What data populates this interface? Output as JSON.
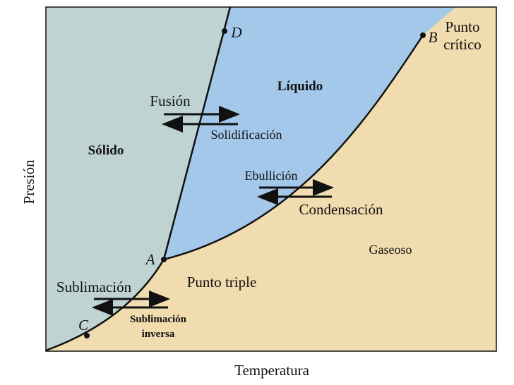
{
  "diagram": {
    "regions": {
      "solid": "Sólido",
      "liquid": "Líquido",
      "gas": "Gaseoso"
    },
    "processes": {
      "fusion": "Fusión",
      "solidification": "Solidificación",
      "boiling": "Ebullición",
      "condensation": "Condensación",
      "sublimation": "Sublimación",
      "deposition": [
        "Sublimación",
        "inversa"
      ]
    },
    "points": {
      "A": "A",
      "B": "B",
      "C": "C",
      "D": "D"
    },
    "annotations": {
      "triple_point": "Punto triple",
      "critical_point": [
        "Punto",
        "crítico"
      ]
    },
    "axes": {
      "y_label": "Presión",
      "x_label": "Temperatura"
    }
  }
}
